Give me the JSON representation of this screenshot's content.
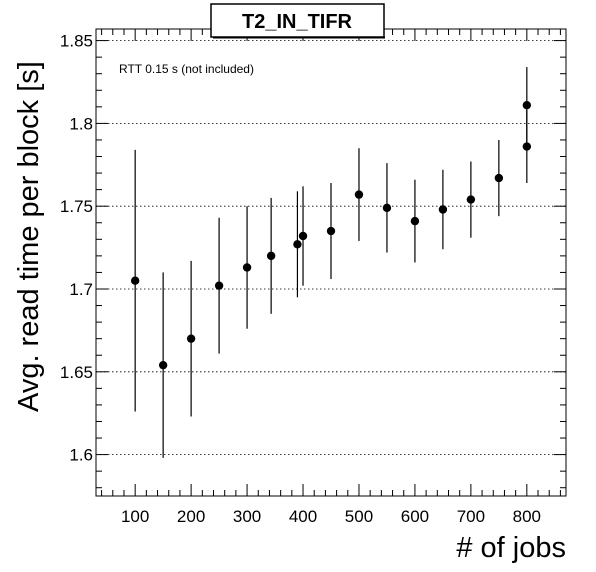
{
  "chart_data": {
    "type": "scatter",
    "title": "T2_IN_TIFR",
    "xlabel": "# of jobs",
    "ylabel": "Avg. read time per block [s]",
    "annotation": "RTT 0.15 s (not included)",
    "xlim": [
      30,
      870
    ],
    "ylim": [
      1.575,
      1.857
    ],
    "x_ticks": [
      100,
      200,
      300,
      400,
      500,
      600,
      700,
      800
    ],
    "x_tick_labels": [
      "100",
      "200",
      "300",
      "400",
      "500",
      "600",
      "700",
      "800"
    ],
    "y_ticks": [
      1.6,
      1.65,
      1.7,
      1.75,
      1.8,
      1.85
    ],
    "y_tick_labels": [
      "1.6",
      "1.65",
      "1.7",
      "1.75",
      "1.8",
      "1.85"
    ],
    "grid": "horizontal dotted",
    "series": [
      {
        "points": [
          {
            "x": 100,
            "y": 1.705,
            "err": 0.079
          },
          {
            "x": 150,
            "y": 1.654,
            "err": 0.056
          },
          {
            "x": 200,
            "y": 1.67,
            "err": 0.047
          },
          {
            "x": 250,
            "y": 1.702,
            "err": 0.041
          },
          {
            "x": 300,
            "y": 1.713,
            "err": 0.037
          },
          {
            "x": 343,
            "y": 1.72,
            "err": 0.035
          },
          {
            "x": 390,
            "y": 1.727,
            "err": 0.032
          },
          {
            "x": 400,
            "y": 1.732,
            "err": 0.03
          },
          {
            "x": 450,
            "y": 1.735,
            "err": 0.029
          },
          {
            "x": 500,
            "y": 1.757,
            "err": 0.028
          },
          {
            "x": 550,
            "y": 1.749,
            "err": 0.027
          },
          {
            "x": 600,
            "y": 1.741,
            "err": 0.025
          },
          {
            "x": 650,
            "y": 1.748,
            "err": 0.024
          },
          {
            "x": 700,
            "y": 1.754,
            "err": 0.023
          },
          {
            "x": 750,
            "y": 1.767,
            "err": 0.023
          },
          {
            "x": 800,
            "y": 1.786,
            "err": 0.022
          },
          {
            "x": 800,
            "y": 1.811,
            "err": 0.023
          }
        ],
        "color": "#000000"
      }
    ]
  }
}
